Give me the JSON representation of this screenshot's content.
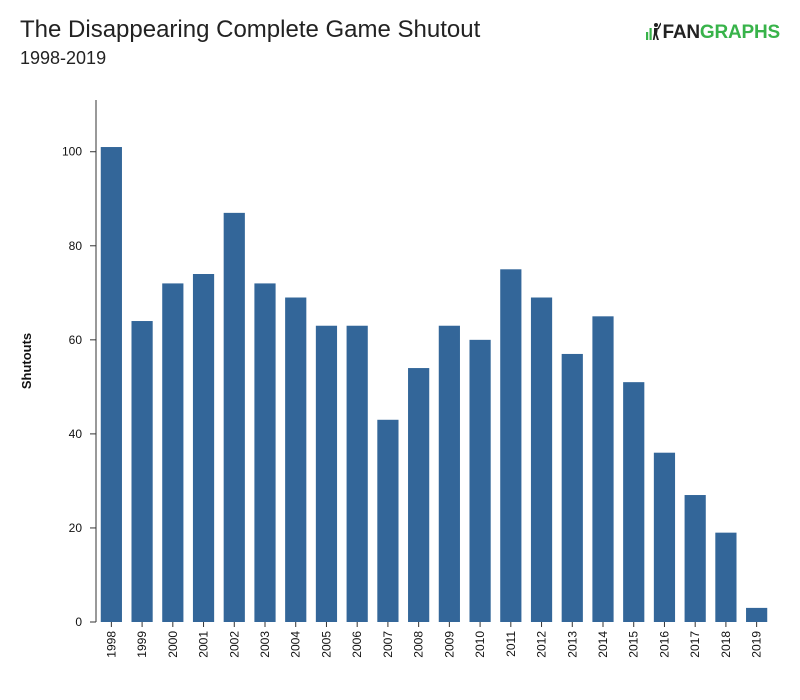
{
  "header": {
    "title": "The Disappearing Complete Game Shutout",
    "subtitle": "1998-2019",
    "logo_text_a": "FAN",
    "logo_text_b": "GRAPHS"
  },
  "colors": {
    "bar": "#336699",
    "axis": "#333333",
    "logo_green": "#38b34a"
  },
  "chart_data": {
    "type": "bar",
    "title": "The Disappearing Complete Game Shutout",
    "subtitle": "1998-2019",
    "xlabel": "",
    "ylabel": "Shutouts",
    "categories": [
      "1998",
      "1999",
      "2000",
      "2001",
      "2002",
      "2003",
      "2004",
      "2005",
      "2006",
      "2007",
      "2008",
      "2009",
      "2010",
      "2011",
      "2012",
      "2013",
      "2014",
      "2015",
      "2016",
      "2017",
      "2018",
      "2019"
    ],
    "values": [
      101,
      64,
      72,
      74,
      87,
      72,
      69,
      63,
      63,
      43,
      54,
      63,
      60,
      75,
      69,
      57,
      65,
      51,
      36,
      27,
      19,
      3
    ],
    "ylim": [
      0,
      111
    ],
    "yticks": [
      0,
      20,
      40,
      60,
      80,
      100
    ],
    "grid": false,
    "legend": "none"
  }
}
